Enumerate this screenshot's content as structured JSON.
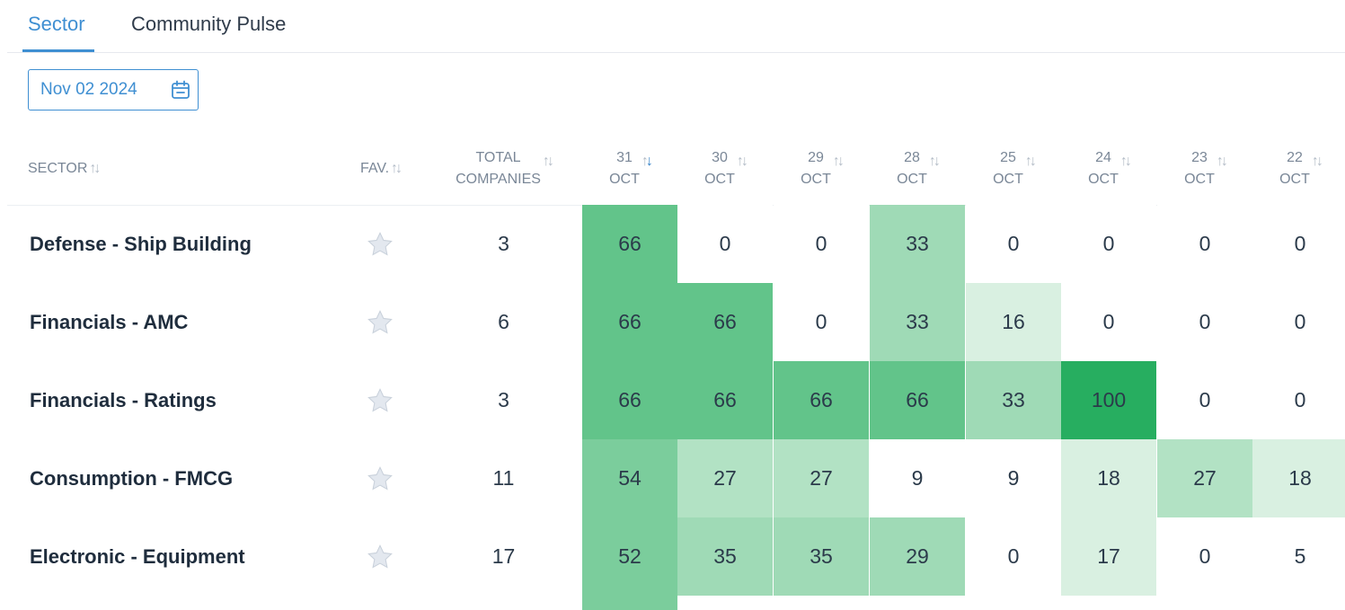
{
  "tabs": [
    {
      "label": "Sector",
      "active": true
    },
    {
      "label": "Community Pulse",
      "active": false
    }
  ],
  "date_picker": {
    "value": "Nov 02 2024",
    "icon": "calendar-icon"
  },
  "table": {
    "headers": {
      "sector": "SECTOR",
      "fav": "FAV.",
      "total_line1": "TOTAL",
      "total_line2": "COMPANIES"
    },
    "dates": [
      {
        "day": "31",
        "month": "OCT",
        "sorted": true
      },
      {
        "day": "30",
        "month": "OCT",
        "sorted": false
      },
      {
        "day": "29",
        "month": "OCT",
        "sorted": false
      },
      {
        "day": "28",
        "month": "OCT",
        "sorted": false
      },
      {
        "day": "25",
        "month": "OCT",
        "sorted": false
      },
      {
        "day": "24",
        "month": "OCT",
        "sorted": false
      },
      {
        "day": "23",
        "month": "OCT",
        "sorted": false
      },
      {
        "day": "22",
        "month": "OCT",
        "sorted": false
      }
    ],
    "rows": [
      {
        "sector": "Defense - Ship Building",
        "total": "3",
        "values": [
          66,
          0,
          0,
          33,
          0,
          0,
          0,
          0
        ]
      },
      {
        "sector": "Financials - AMC",
        "total": "6",
        "values": [
          66,
          66,
          0,
          33,
          16,
          0,
          0,
          0
        ]
      },
      {
        "sector": "Financials - Ratings",
        "total": "3",
        "values": [
          66,
          66,
          66,
          66,
          33,
          100,
          0,
          0
        ]
      },
      {
        "sector": "Consumption - FMCG",
        "total": "11",
        "values": [
          54,
          27,
          27,
          9,
          9,
          18,
          27,
          18
        ]
      },
      {
        "sector": "Electronic - Equipment",
        "total": "17",
        "values": [
          52,
          35,
          35,
          29,
          0,
          17,
          0,
          5
        ]
      }
    ]
  },
  "colors": {
    "accent": "#3f8fd2",
    "heat": [
      "#ffffff",
      "#d9f0e1",
      "#b2e2c4",
      "#9fdab6",
      "#7bcd9c",
      "#62c48a",
      "#27ae60"
    ]
  }
}
